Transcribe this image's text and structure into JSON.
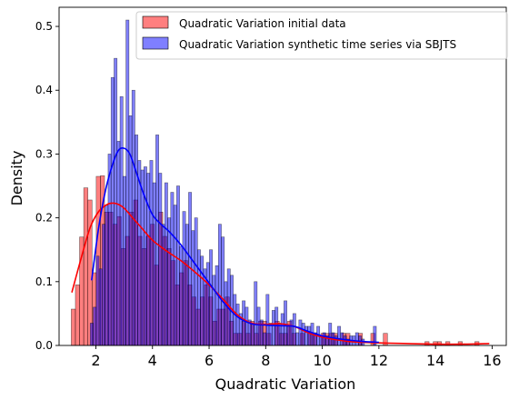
{
  "chart_data": {
    "type": "histogram",
    "xlabel": "Quadratic Variation",
    "ylabel": "Density",
    "xlim": [
      0.7,
      16.5
    ],
    "ylim": [
      0,
      0.53
    ],
    "xticks": [
      2,
      4,
      6,
      8,
      10,
      12,
      14,
      16
    ],
    "yticks": [
      0.0,
      0.1,
      0.2,
      0.3,
      0.4,
      0.5
    ],
    "xtick_labels": [
      "2",
      "4",
      "6",
      "8",
      "10",
      "12",
      "14",
      "16"
    ],
    "ytick_labels": [
      "0.0",
      "0.1",
      "0.2",
      "0.3",
      "0.4",
      "0.5"
    ],
    "grid": false,
    "legend_position": "top-right",
    "series": [
      {
        "name": "Quadratic Variation initial data",
        "kind": "histogram+kde",
        "color": "#ff0000",
        "bin_start": 1.13,
        "bin_width": 0.147,
        "values": [
          0.057,
          0.095,
          0.17,
          0.247,
          0.228,
          0.114,
          0.265,
          0.266,
          0.209,
          0.209,
          0.19,
          0.202,
          0.152,
          0.171,
          0.209,
          0.228,
          0.171,
          0.152,
          0.171,
          0.19,
          0.126,
          0.209,
          0.171,
          0.152,
          0.133,
          0.095,
          0.114,
          0.133,
          0.095,
          0.076,
          0.057,
          0.076,
          0.095,
          0.076,
          0.038,
          0.057,
          0.057,
          0.076,
          0.038,
          0.019,
          0.019,
          0.038,
          0.019,
          0.038,
          0.019,
          0.038,
          0.038,
          0.019,
          0.0,
          0.038,
          0.019,
          0.019,
          0.038,
          0.019,
          0.0,
          0.019,
          0.0,
          0.019,
          0.019,
          0.0,
          0.019,
          0.019,
          0.019,
          0.019,
          0.0,
          0.019,
          0.019,
          0.0,
          0.0,
          0.019,
          0.0,
          0.0,
          0.019,
          0.0,
          0.0,
          0.019,
          0.0,
          0.0,
          0.0,
          0.0,
          0.0,
          0.0,
          0.0,
          0.0,
          0.0,
          0.006,
          0.0,
          0.006,
          0.006,
          0.0,
          0.006,
          0.0,
          0.0,
          0.006,
          0.0,
          0.0,
          0.0,
          0.006,
          0.0,
          0.0
        ],
        "kde_x": [
          1.15,
          1.5,
          1.8,
          2.1,
          2.4,
          2.6,
          2.8,
          3.0,
          3.3,
          3.6,
          4.0,
          4.5,
          5.0,
          5.5,
          6.0,
          6.5,
          7.0,
          7.5,
          8.0,
          8.5,
          9.0,
          9.5,
          10.0,
          10.5,
          11.0,
          12.0,
          13.0,
          14.0,
          15.0,
          15.9
        ],
        "kde_y": [
          0.083,
          0.14,
          0.185,
          0.21,
          0.221,
          0.223,
          0.221,
          0.215,
          0.2,
          0.185,
          0.165,
          0.148,
          0.133,
          0.115,
          0.095,
          0.072,
          0.048,
          0.035,
          0.033,
          0.034,
          0.03,
          0.02,
          0.013,
          0.009,
          0.006,
          0.004,
          0.003,
          0.002,
          0.002,
          0.003
        ]
      },
      {
        "name": "Quadratic Variation synthetic time series via SBJTS",
        "kind": "histogram+kde",
        "color": "#0000ff",
        "bin_start": 1.8,
        "bin_width": 0.1053,
        "values": [
          0.035,
          0.06,
          0.14,
          0.12,
          0.19,
          0.22,
          0.3,
          0.42,
          0.45,
          0.32,
          0.39,
          0.265,
          0.51,
          0.36,
          0.4,
          0.33,
          0.29,
          0.275,
          0.28,
          0.27,
          0.29,
          0.255,
          0.33,
          0.27,
          0.19,
          0.255,
          0.2,
          0.24,
          0.22,
          0.25,
          0.155,
          0.21,
          0.19,
          0.24,
          0.18,
          0.2,
          0.15,
          0.14,
          0.12,
          0.13,
          0.15,
          0.11,
          0.125,
          0.19,
          0.17,
          0.1,
          0.12,
          0.11,
          0.08,
          0.065,
          0.05,
          0.07,
          0.06,
          0.04,
          0.035,
          0.1,
          0.06,
          0.04,
          0.02,
          0.08,
          0.035,
          0.055,
          0.06,
          0.035,
          0.05,
          0.07,
          0.03,
          0.04,
          0.05,
          0.02,
          0.04,
          0.035,
          0.03,
          0.03,
          0.035,
          0.02,
          0.03,
          0.015,
          0.02,
          0.015,
          0.035,
          0.02,
          0.015,
          0.03,
          0.02,
          0.015,
          0.01,
          0.015,
          0.015,
          0.02,
          0.015,
          0.01,
          0.0,
          0.0,
          0.0,
          0.03
        ],
        "kde_x": [
          1.85,
          2.1,
          2.35,
          2.6,
          2.8,
          3.0,
          3.2,
          3.4,
          3.7,
          4.0,
          4.3,
          4.6,
          5.0,
          5.5,
          6.0,
          6.5,
          7.0,
          7.5,
          8.0,
          8.5,
          9.0,
          9.5,
          10.0,
          10.5,
          11.0,
          11.5,
          12.0
        ],
        "kde_y": [
          0.102,
          0.185,
          0.245,
          0.285,
          0.306,
          0.309,
          0.3,
          0.275,
          0.236,
          0.205,
          0.19,
          0.178,
          0.158,
          0.128,
          0.098,
          0.068,
          0.045,
          0.034,
          0.032,
          0.031,
          0.03,
          0.022,
          0.015,
          0.011,
          0.008,
          0.006,
          0.005
        ]
      }
    ]
  }
}
